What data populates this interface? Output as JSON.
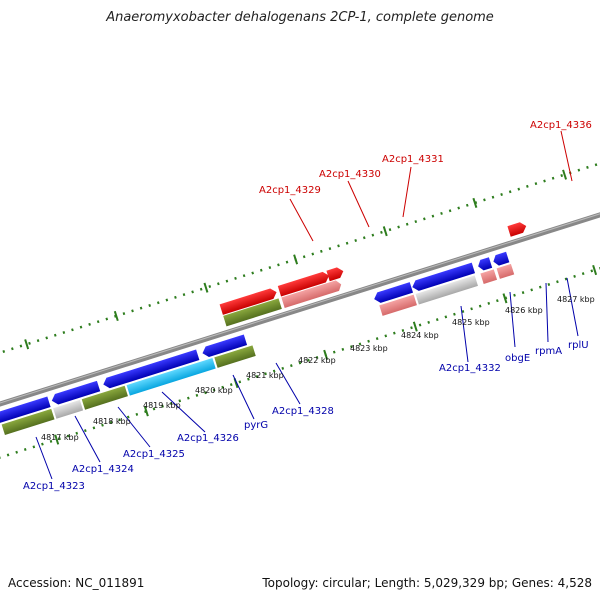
{
  "title": "Anaeromyxobacter dehalogenans 2CP-1, complete genome",
  "footer": {
    "accession": "Accession: NC_011891",
    "topology": "Topology: circular; Length: 5,029,329 bp; Genes: 4,528"
  },
  "colors": {
    "backbone": "#888888",
    "tick": "#2e7d1e",
    "label_forward": "#cc0000",
    "label_reverse": "#0000aa"
  },
  "kbp_labels": [
    "4817 kbp",
    "4818 kbp",
    "4819 kbp",
    "4820 kbp",
    "4821 kbp",
    "4822 kbp",
    "4823 kbp",
    "4824 kbp",
    "4825 kbp",
    "4826 kbp",
    "4827 kbp"
  ],
  "forward_labels": [
    "A2cp1_4329",
    "A2cp1_4330",
    "A2cp1_4331",
    "A2cp1_4336"
  ],
  "reverse_labels": [
    "A2cp1_4323",
    "A2cp1_4324",
    "A2cp1_4325",
    "A2cp1_4326",
    "pyrG",
    "A2cp1_4328",
    "A2cp1_4332",
    "obgE",
    "rpmA",
    "rplU"
  ]
}
